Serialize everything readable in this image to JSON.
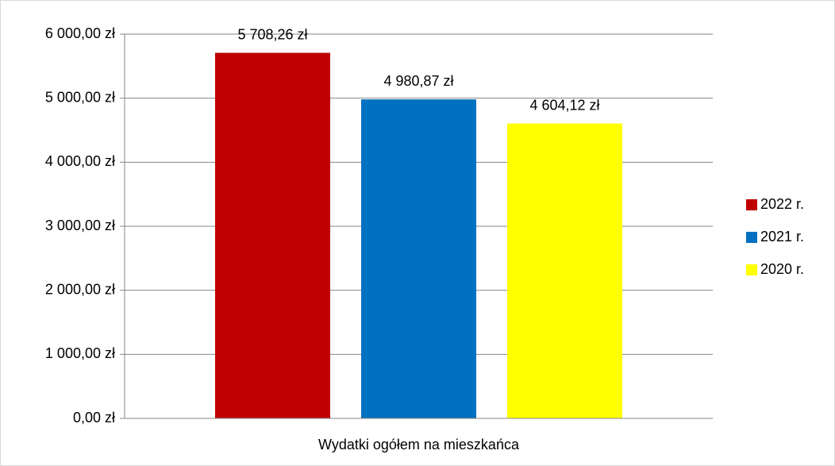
{
  "chart_data": {
    "type": "bar",
    "categories": [
      "Wydatki ogółem na mieszkańca"
    ],
    "series": [
      {
        "name": "2022 r.",
        "color": "#c00000",
        "values": [
          5708.26
        ],
        "value_labels": [
          "5 708,26 zł"
        ]
      },
      {
        "name": "2021 r.",
        "color": "#0070c0",
        "values": [
          4980.87
        ],
        "value_labels": [
          "4 980,87 zł"
        ]
      },
      {
        "name": "2020 r.",
        "color": "#ffff00",
        "values": [
          4604.12
        ],
        "value_labels": [
          "4 604,12 zł"
        ]
      }
    ],
    "ylim": [
      0,
      6000
    ],
    "yticks": [
      {
        "value": 0,
        "label": "0,00 zł"
      },
      {
        "value": 1000,
        "label": "1 000,00 zł"
      },
      {
        "value": 2000,
        "label": "2 000,00 zł"
      },
      {
        "value": 3000,
        "label": "3 000,00 zł"
      },
      {
        "value": 4000,
        "label": "4 000,00 zł"
      },
      {
        "value": 5000,
        "label": "5 000,00 zł"
      },
      {
        "value": 6000,
        "label": "6 000,00 zł"
      }
    ],
    "grid": true,
    "legend": "right"
  }
}
